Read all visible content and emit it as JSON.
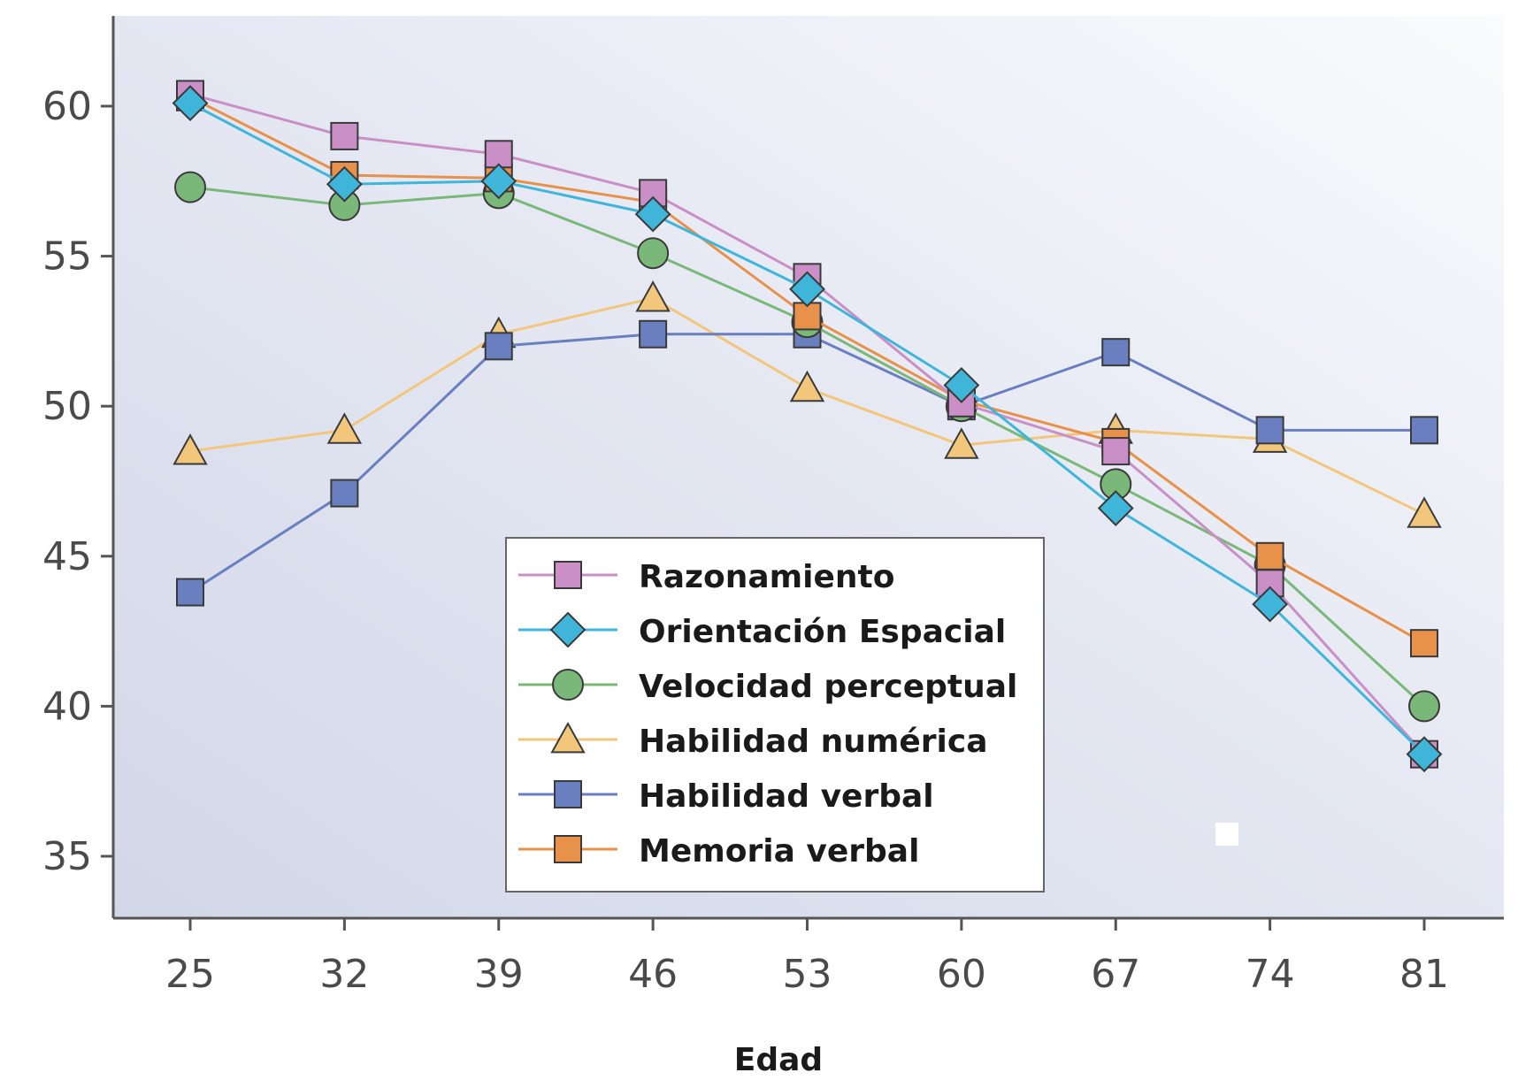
{
  "chart_data": {
    "type": "line",
    "title": "",
    "xlabel": "Edad",
    "ylabel": "",
    "x": [
      25,
      32,
      39,
      46,
      53,
      60,
      67,
      74,
      81
    ],
    "ylim": [
      32,
      63
    ],
    "yticks": [
      35,
      40,
      45,
      50,
      55,
      60
    ],
    "grid": false,
    "legend_position": "bottom-center",
    "series": [
      {
        "name": "Razonamiento",
        "marker": "square",
        "color": "#c98fc6",
        "values": [
          60.4,
          59.0,
          58.4,
          57.1,
          54.3,
          50.1,
          48.5,
          44.1,
          38.4
        ]
      },
      {
        "name": "Orientación Espacial",
        "marker": "diamond",
        "color": "#3fb6d9",
        "values": [
          60.1,
          57.4,
          57.5,
          56.4,
          53.9,
          50.7,
          46.6,
          43.4,
          38.4
        ]
      },
      {
        "name": "Velocidad perceptual",
        "marker": "circle",
        "color": "#7ab87a",
        "values": [
          57.3,
          56.7,
          57.1,
          55.1,
          52.8,
          50.0,
          47.4,
          44.7,
          40.0
        ]
      },
      {
        "name": "Habilidad numérica",
        "marker": "triangle",
        "color": "#f2c77c",
        "values": [
          48.5,
          49.2,
          52.4,
          53.6,
          50.6,
          48.7,
          49.2,
          48.9,
          46.4
        ]
      },
      {
        "name": "Habilidad verbal",
        "marker": "square",
        "color": "#6a7fbf",
        "values": [
          43.8,
          47.1,
          52.0,
          52.4,
          52.4,
          50.0,
          51.8,
          49.2,
          49.2
        ]
      },
      {
        "name": "Memoria verbal",
        "marker": "square",
        "color": "#e8914a",
        "values": [
          60.3,
          57.7,
          57.6,
          56.8,
          53.0,
          50.2,
          48.8,
          45.0,
          42.1
        ]
      }
    ]
  }
}
